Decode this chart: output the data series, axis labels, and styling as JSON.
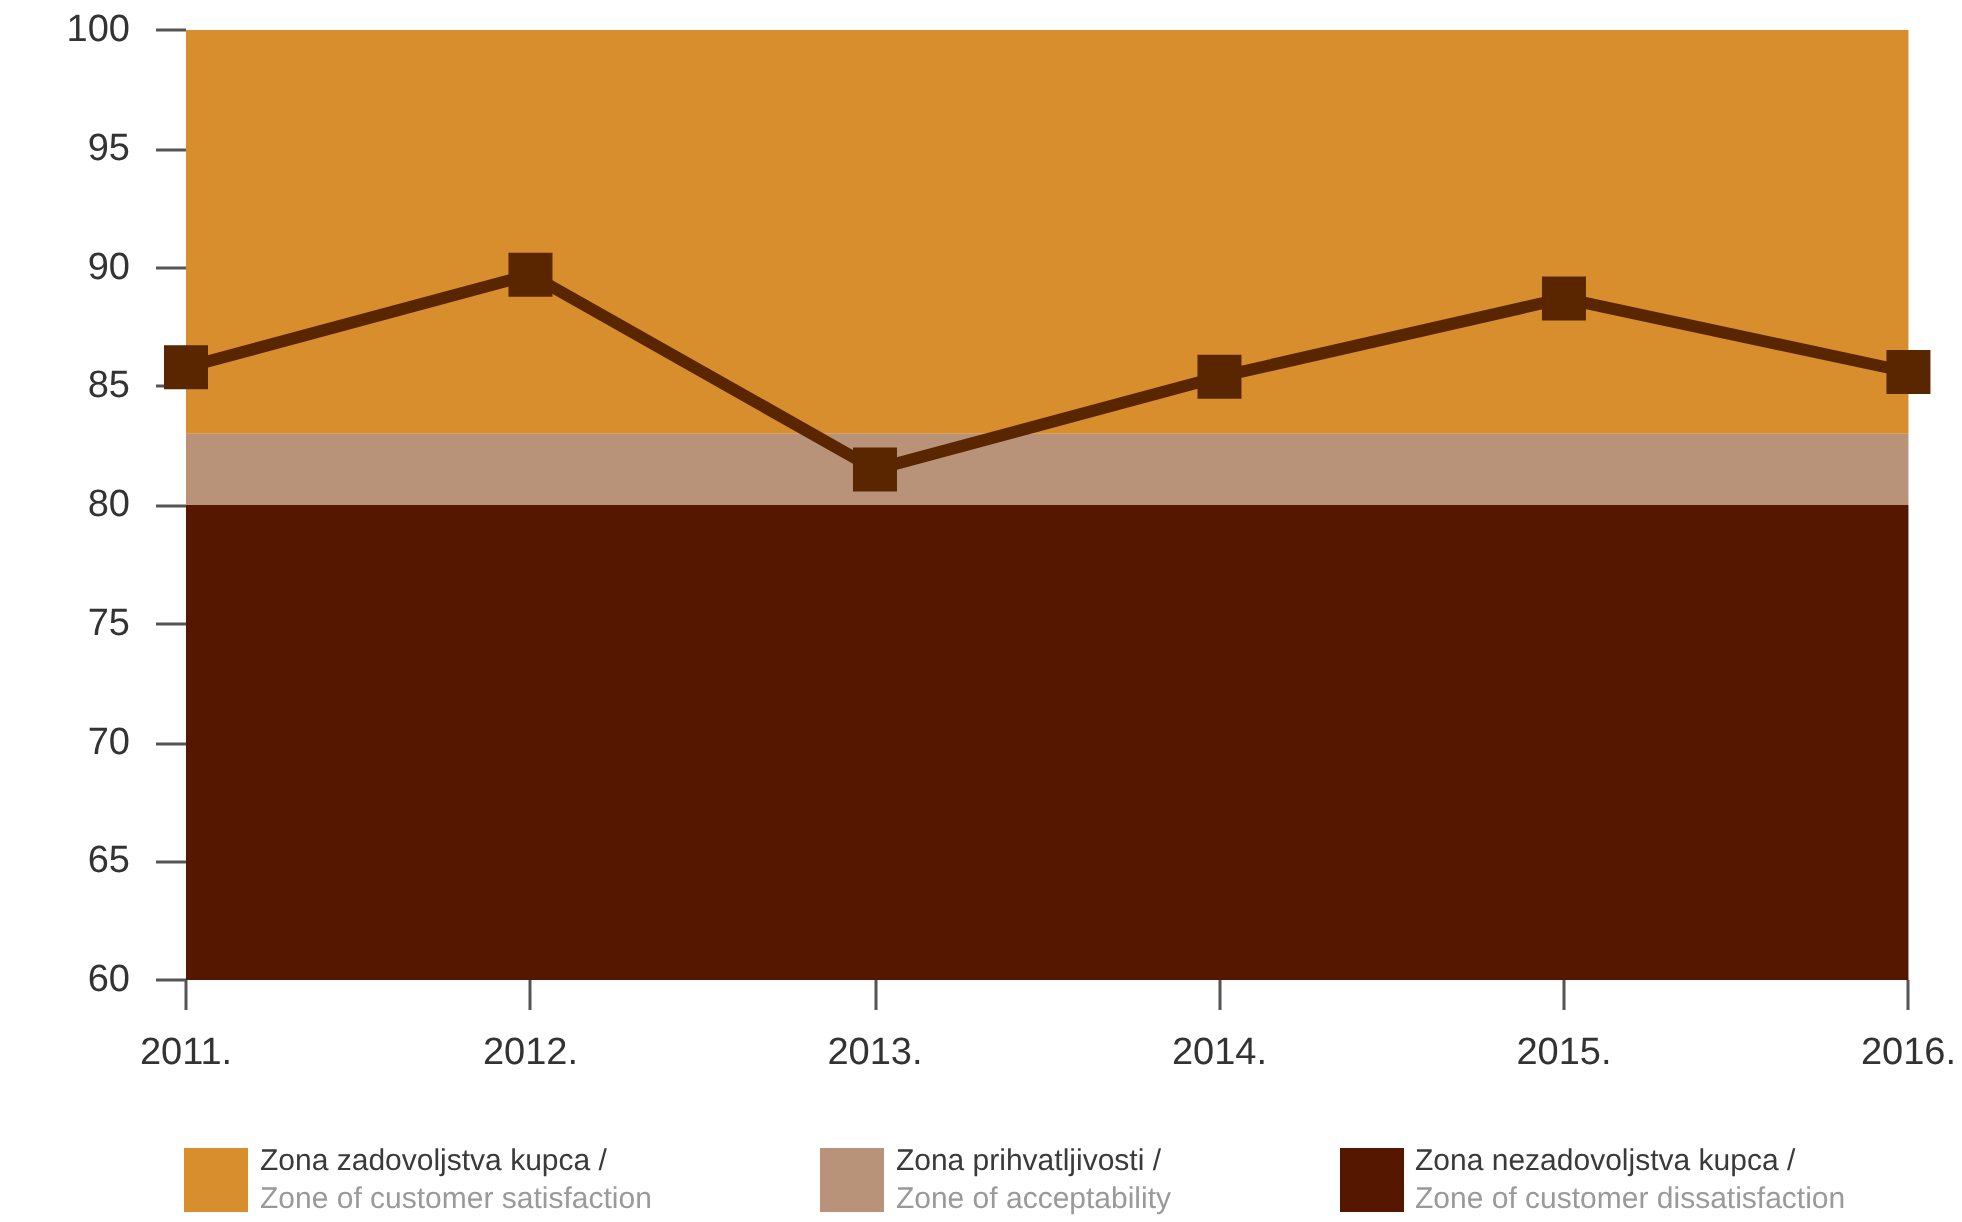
{
  "chart_data": {
    "type": "line",
    "categories": [
      "2011.",
      "2012.",
      "2013.",
      "2014.",
      "2015.",
      "2016."
    ],
    "values": [
      85.8,
      89.7,
      81.5,
      85.4,
      88.7,
      85.6
    ],
    "color": "#5a2600",
    "ylim": [
      60,
      100
    ],
    "yticks": [
      60,
      65,
      70,
      75,
      80,
      85,
      90,
      95,
      100
    ],
    "bands": [
      {
        "axis": "y",
        "from": 83,
        "to": 100,
        "label": "Zona zadovoljstva kupca /\nZone of customer satisfaction",
        "color": "#d98e2e"
      },
      {
        "axis": "y",
        "from": 80,
        "to": 83,
        "label": "Zona prihvatljivosti /\nZone of acceptability",
        "color": "#b8937a"
      },
      {
        "axis": "y",
        "from": 60,
        "to": 80,
        "label": "Zona nezadovoljstva kupca /\nZone of customer dissatisfaction",
        "color": "#561700"
      }
    ],
    "legend": "bottom",
    "marker": "square",
    "line_style": "solid"
  }
}
